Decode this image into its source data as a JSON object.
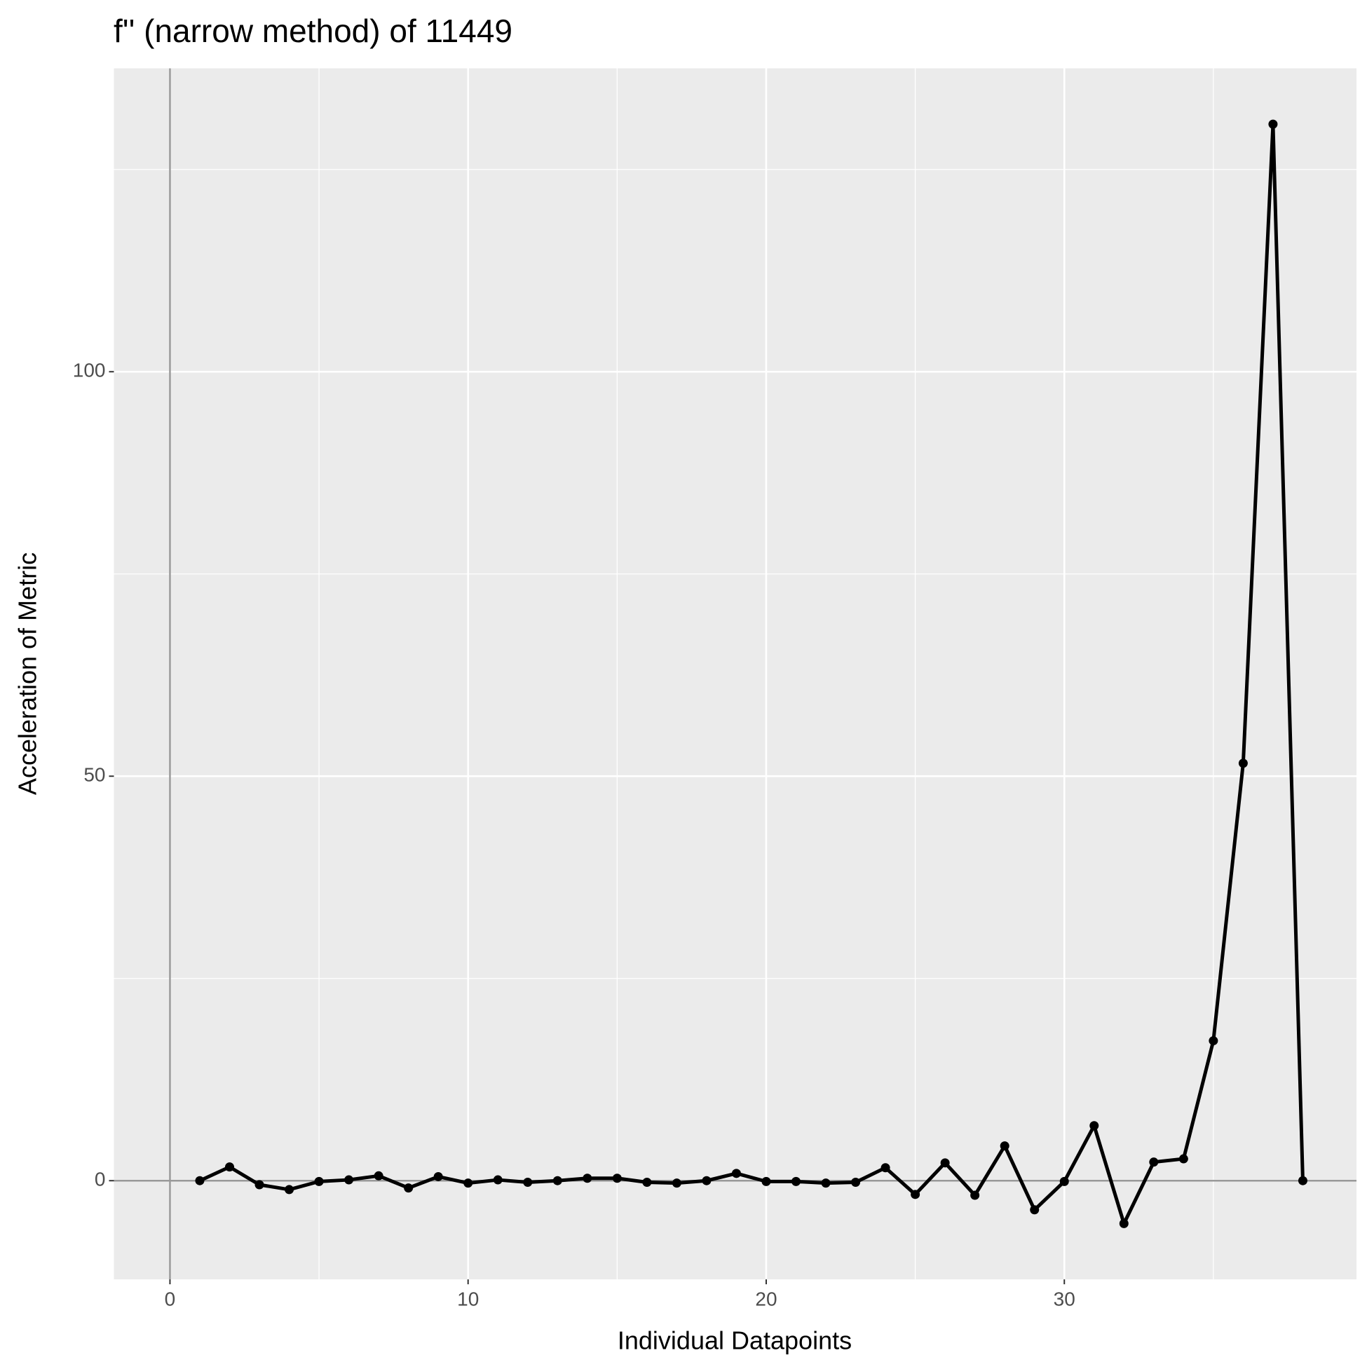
{
  "chart_data": {
    "type": "line",
    "title": "f'' (narrow method) of 11449",
    "x_label": "Individual Datapoints",
    "y_label": "Acceleration of Metric",
    "x": [
      1,
      2,
      3,
      4,
      5,
      6,
      7,
      8,
      9,
      10,
      11,
      12,
      13,
      14,
      15,
      16,
      17,
      18,
      19,
      20,
      21,
      22,
      23,
      24,
      25,
      26,
      27,
      28,
      29,
      30,
      31,
      32,
      33,
      34,
      35,
      36,
      37,
      38
    ],
    "series": [
      {
        "color": "#000000",
        "values": [
          0,
          1.7,
          -0.5,
          -1.1,
          -0.1,
          0.1,
          0.6,
          -0.9,
          0.5,
          -0.3,
          0.1,
          -0.2,
          0,
          0.3,
          0.3,
          -0.2,
          -0.3,
          0,
          0.9,
          -0.1,
          -0.1,
          -0.3,
          -0.2,
          1.6,
          -1.7,
          2.2,
          -1.8,
          4.3,
          -3.6,
          -0.1,
          6.8,
          -5.3,
          2.3,
          2.7,
          17.3,
          51.6,
          130.6,
          0
        ]
      }
    ],
    "xlim": [
      -1.88,
      39.8
    ],
    "ylim": [
      -12.2,
      137.5
    ],
    "xticks": [
      0,
      10,
      20,
      30
    ],
    "yticks": [
      0,
      50,
      100
    ],
    "grid": true,
    "minor_grid": true
  }
}
